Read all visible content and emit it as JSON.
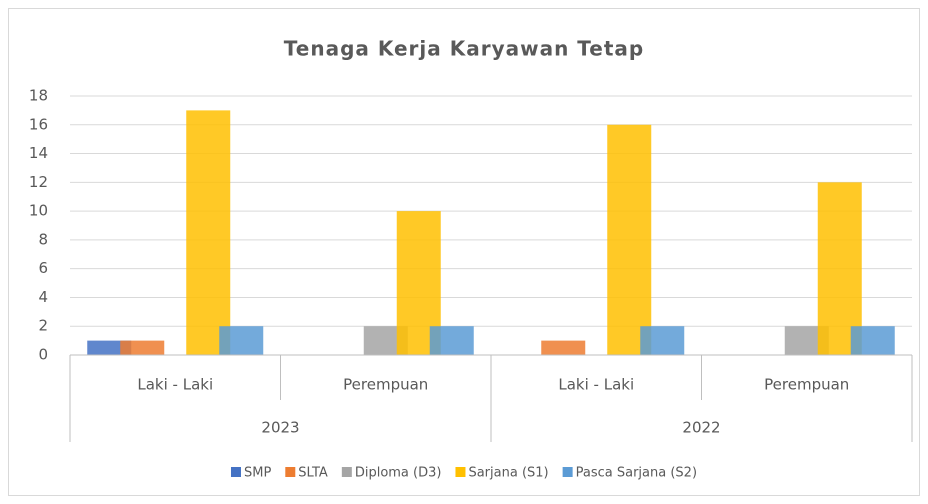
{
  "chart_data": {
    "type": "bar",
    "title": "Tenaga Kerja Karyawan Tetap",
    "categories": [
      "Laki - Laki",
      "Perempuan",
      "Laki - Laki",
      "Perempuan"
    ],
    "category_groups": [
      "2023",
      "2022"
    ],
    "series": [
      {
        "name": "SMP",
        "color": "#4472c4",
        "values": [
          1,
          0,
          0,
          0
        ]
      },
      {
        "name": "SLTA",
        "color": "#ed7d31",
        "values": [
          1,
          0,
          1,
          0
        ]
      },
      {
        "name": "Diploma (D3)",
        "color": "#a5a5a5",
        "values": [
          0,
          2,
          0,
          2
        ]
      },
      {
        "name": "Sarjana (S1)",
        "color": "#ffc000",
        "values": [
          17,
          10,
          16,
          12
        ]
      },
      {
        "name": "Pasca Sarjana (S2)",
        "color": "#5b9bd5",
        "values": [
          2,
          2,
          2,
          2
        ]
      }
    ],
    "ylim": [
      0,
      18
    ],
    "yticks": [
      0,
      2,
      4,
      6,
      8,
      10,
      12,
      14,
      16,
      18
    ],
    "grid": true,
    "legend": "bottom"
  }
}
